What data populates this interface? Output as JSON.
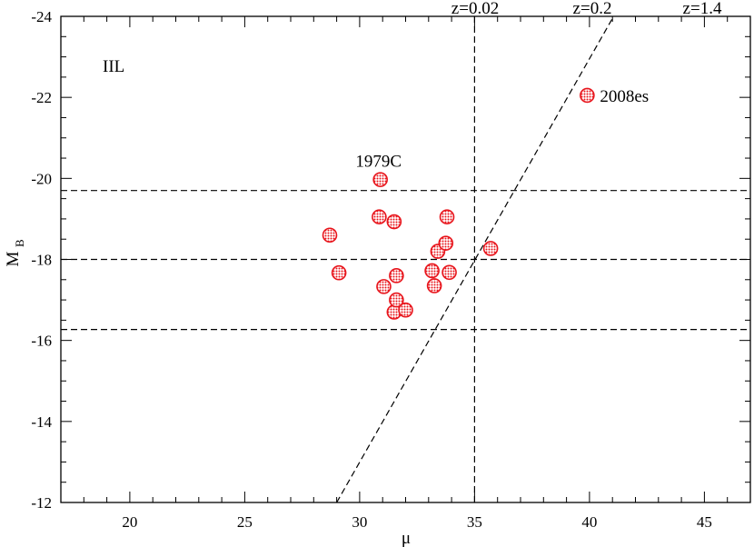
{
  "chart_data": {
    "type": "scatter",
    "title": "",
    "xlabel": "μ",
    "ylabel_main": "M",
    "ylabel_sub": "B",
    "xlim": [
      17,
      47
    ],
    "ylim": [
      -12,
      -24
    ],
    "y_inverted": true,
    "grid": false,
    "x_ticks": [
      20,
      25,
      30,
      35,
      40,
      45
    ],
    "x_tick_labels": [
      "20",
      "25",
      "30",
      "35",
      "40",
      "45"
    ],
    "x_minor_step": 1,
    "y_ticks": [
      -24,
      -22,
      -20,
      -18,
      -16,
      -14,
      -12
    ],
    "y_tick_labels": [
      "-24",
      "-22",
      "-20",
      "-18",
      "-16",
      "-14",
      "-12"
    ],
    "y_minor_step": 0.5,
    "panel_label": "IIL",
    "marker_color": "#e8141b",
    "marker_fill": "#f3a6a6",
    "points": [
      {
        "x": 28.7,
        "y": -18.6
      },
      {
        "x": 29.1,
        "y": -17.67
      },
      {
        "x": 30.85,
        "y": -19.05
      },
      {
        "x": 30.9,
        "y": -19.97,
        "label": "1979C"
      },
      {
        "x": 31.05,
        "y": -17.33
      },
      {
        "x": 31.5,
        "y": -18.93
      },
      {
        "x": 31.5,
        "y": -16.7
      },
      {
        "x": 31.6,
        "y": -17.6
      },
      {
        "x": 31.6,
        "y": -17.0
      },
      {
        "x": 32.0,
        "y": -16.75
      },
      {
        "x": 33.15,
        "y": -17.72
      },
      {
        "x": 33.25,
        "y": -17.35
      },
      {
        "x": 33.4,
        "y": -18.2
      },
      {
        "x": 33.75,
        "y": -18.4
      },
      {
        "x": 33.8,
        "y": -19.05
      },
      {
        "x": 33.9,
        "y": -17.68
      },
      {
        "x": 35.7,
        "y": -18.27
      },
      {
        "x": 39.9,
        "y": -22.05,
        "label": "2008es"
      }
    ],
    "reference_lines": {
      "horizontal_y": [
        -19.7,
        -18.0,
        -16.27
      ],
      "vertical_x": 35,
      "diagonal": {
        "from": [
          29.0,
          -12
        ],
        "to": [
          41.05,
          -24
        ]
      }
    },
    "redshift_labels": [
      "z=0.02",
      "z=0.2",
      "z=1.4"
    ]
  }
}
